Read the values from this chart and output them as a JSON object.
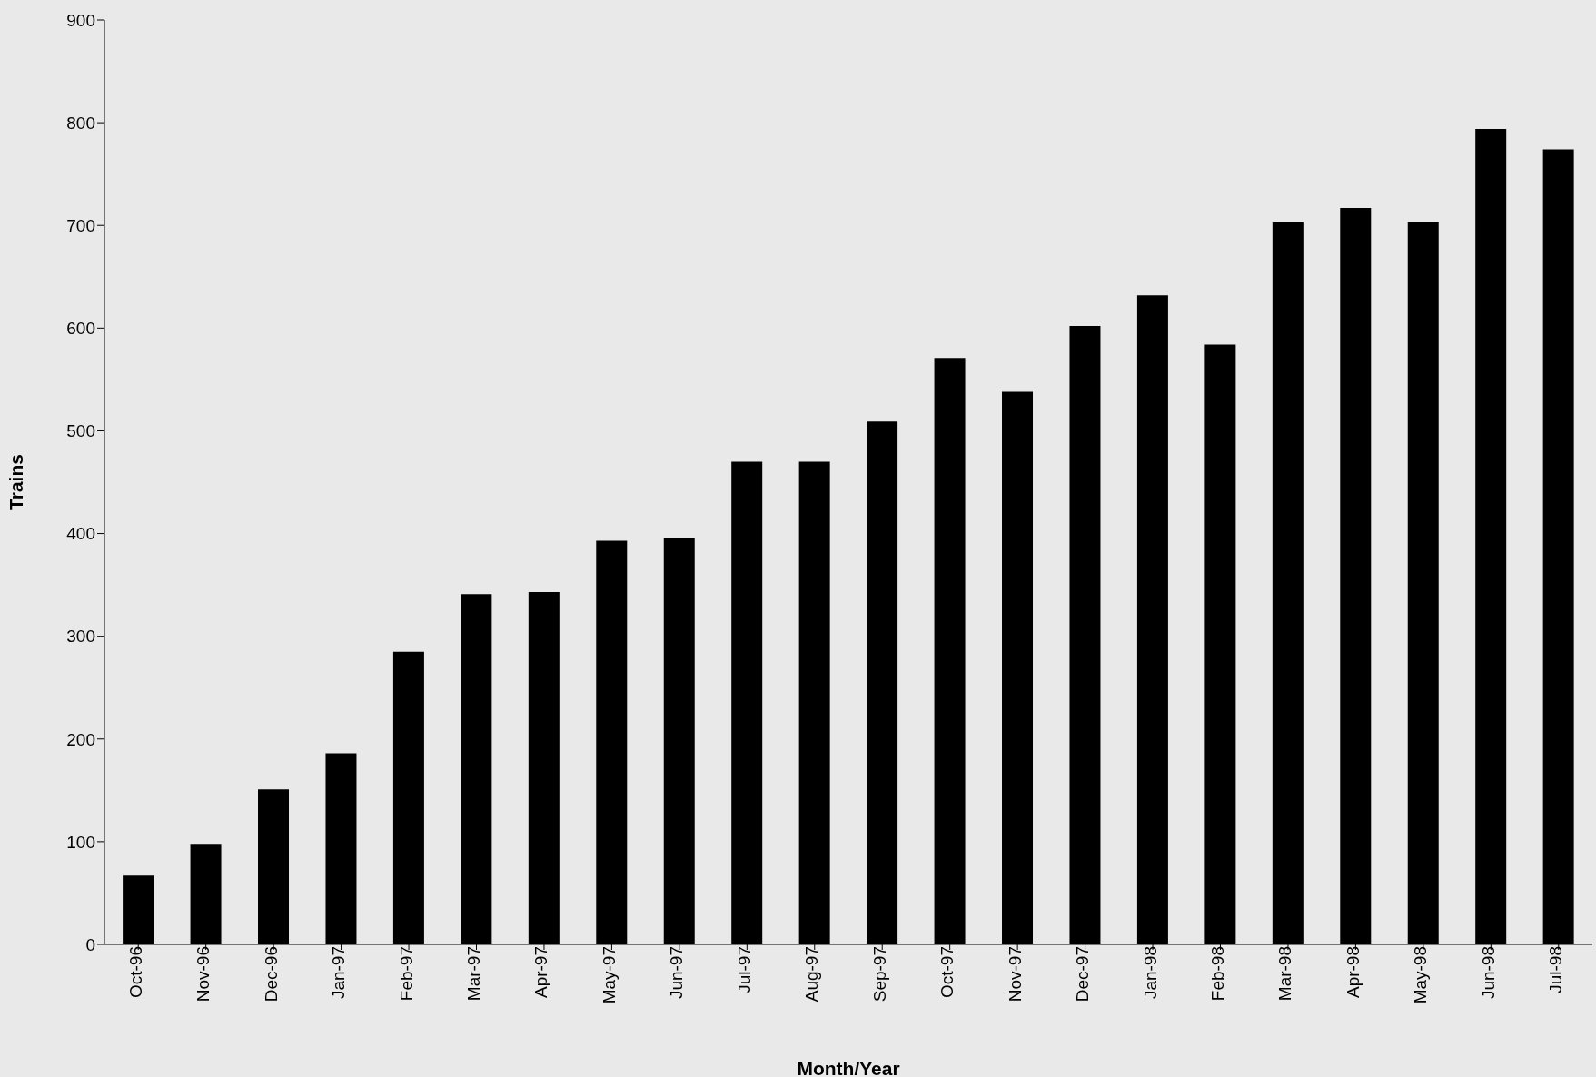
{
  "chart_data": {
    "type": "bar",
    "xlabel": "Month/Year",
    "ylabel": "Trains",
    "categories": [
      "Oct-96",
      "Nov-96",
      "Dec-96",
      "Jan-97",
      "Feb-97",
      "Mar-97",
      "Apr-97",
      "May-97",
      "Jun-97",
      "Jul-97",
      "Aug-97",
      "Sep-97",
      "Oct-97",
      "Nov-97",
      "Dec-97",
      "Jan-98",
      "Feb-98",
      "Mar-98",
      "Apr-98",
      "May-98",
      "Jun-98",
      "Jul-98"
    ],
    "values": [
      67,
      98,
      151,
      186,
      285,
      341,
      343,
      393,
      396,
      470,
      470,
      509,
      571,
      538,
      602,
      632,
      584,
      703,
      717,
      703,
      794,
      774
    ],
    "color": "#000000",
    "ylim": [
      0,
      900
    ],
    "yticks": [
      0,
      100,
      200,
      300,
      400,
      500,
      600,
      700,
      800,
      900
    ],
    "grid": false
  }
}
